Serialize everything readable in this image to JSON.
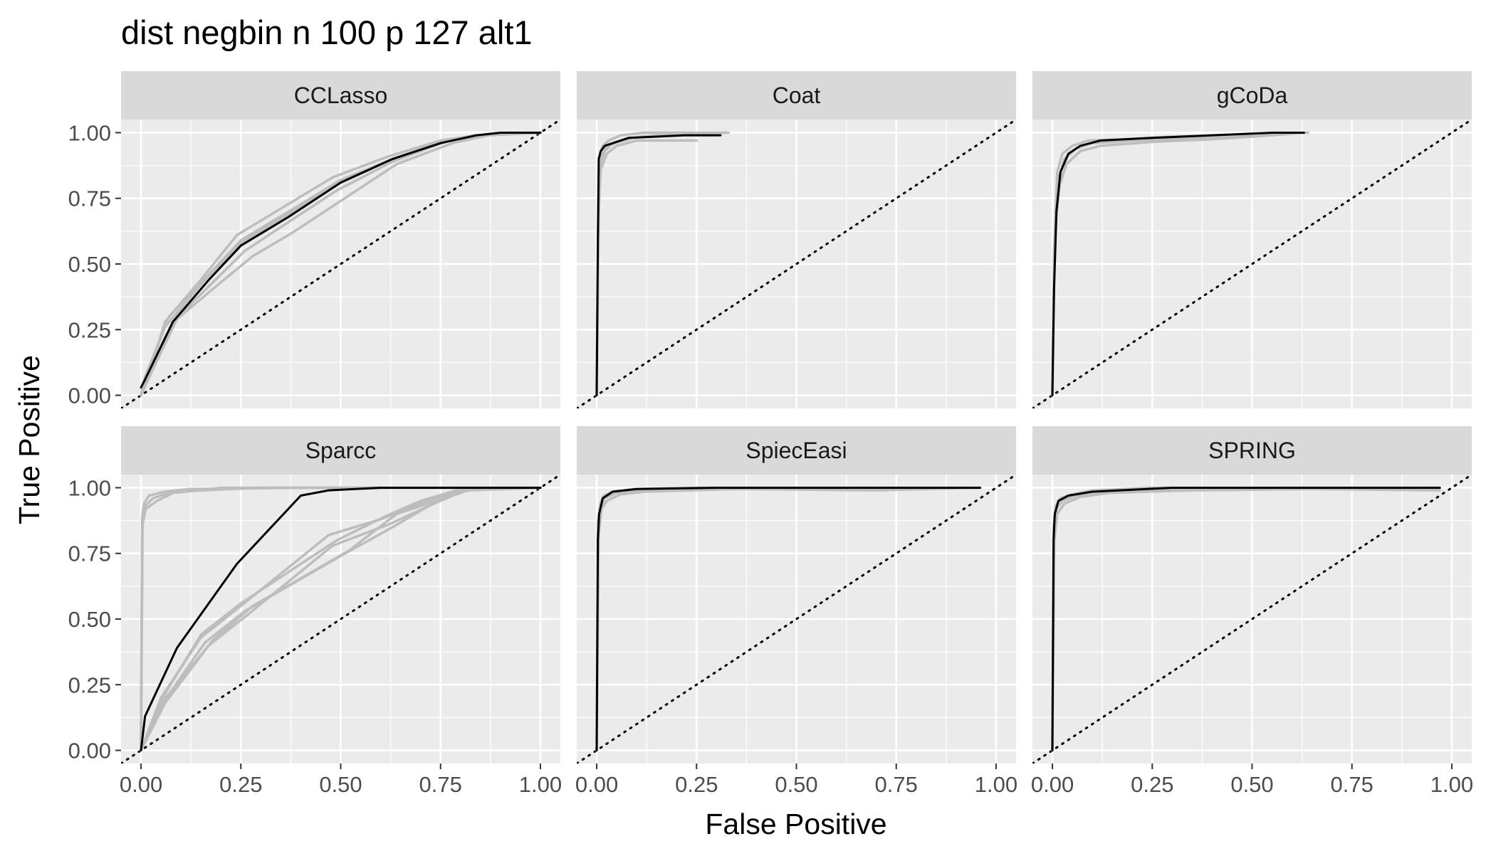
{
  "chart_data": {
    "type": "line",
    "title": "dist negbin n 100 p 127 alt1",
    "xlabel": "False Positive",
    "ylabel": "True Positive",
    "xlim": [
      -0.05,
      1.05
    ],
    "ylim": [
      -0.05,
      1.05
    ],
    "x_ticks": [
      "0.00",
      "0.25",
      "0.50",
      "0.75",
      "1.00"
    ],
    "y_ticks": [
      "0.00",
      "0.25",
      "0.50",
      "0.75",
      "1.00"
    ],
    "grid": true,
    "reference_line": {
      "style": "dotted",
      "x": [
        -0.05,
        1.05
      ],
      "y": [
        -0.05,
        1.05
      ]
    },
    "colors": {
      "mean_curve": "#000000",
      "replicate_curves": "#bdbdbd",
      "panel_background": "#ebebeb",
      "strip_background": "#d9d9d9"
    },
    "panels": [
      {
        "name": "CCLasso",
        "replicates": [
          {
            "x": [
              0,
              0.02,
              0.07,
              0.17,
              0.25,
              0.37,
              0.5,
              0.63,
              0.76,
              0.85,
              0.92,
              1.0
            ],
            "y": [
              0,
              0.1,
              0.3,
              0.46,
              0.59,
              0.7,
              0.82,
              0.9,
              0.97,
              0.99,
              1.0,
              1.0
            ]
          },
          {
            "x": [
              0,
              0.02,
              0.06,
              0.15,
              0.24,
              0.36,
              0.48,
              0.62,
              0.75,
              0.84,
              1.0
            ],
            "y": [
              0,
              0.08,
              0.28,
              0.44,
              0.61,
              0.72,
              0.83,
              0.91,
              0.97,
              0.99,
              1.0
            ]
          },
          {
            "x": [
              0,
              0.03,
              0.09,
              0.2,
              0.28,
              0.38,
              0.51,
              0.64,
              0.78,
              0.87,
              1.0
            ],
            "y": [
              0,
              0.1,
              0.29,
              0.43,
              0.53,
              0.62,
              0.75,
              0.88,
              0.96,
              0.99,
              1.0
            ]
          },
          {
            "x": [
              0,
              0.02,
              0.08,
              0.18,
              0.26,
              0.36,
              0.49,
              0.63,
              0.77,
              0.86,
              1.0
            ],
            "y": [
              0,
              0.09,
              0.28,
              0.43,
              0.55,
              0.65,
              0.78,
              0.89,
              0.97,
              0.99,
              1.0
            ]
          },
          {
            "x": [
              0,
              0.01,
              0.06,
              0.16,
              0.25,
              0.37,
              0.5,
              0.63,
              0.76,
              0.85,
              1.0
            ],
            "y": [
              0,
              0.07,
              0.26,
              0.44,
              0.58,
              0.69,
              0.81,
              0.9,
              0.97,
              0.99,
              1.0
            ]
          }
        ],
        "mean": {
          "x": [
            0,
            0.01,
            0.08,
            0.17,
            0.25,
            0.37,
            0.5,
            0.63,
            0.75,
            0.84,
            0.9,
            1.0
          ],
          "y": [
            0.03,
            0.06,
            0.28,
            0.44,
            0.57,
            0.68,
            0.81,
            0.9,
            0.96,
            0.99,
            1.0,
            1.0
          ]
        }
      },
      {
        "name": "Coat",
        "replicates": [
          {
            "x": [
              0,
              0.004,
              0.008,
              0.02,
              0.04,
              0.08,
              0.15,
              0.22,
              0.3
            ],
            "y": [
              0,
              0.6,
              0.88,
              0.93,
              0.96,
              0.98,
              0.99,
              0.99,
              0.99
            ]
          },
          {
            "x": [
              0,
              0.003,
              0.007,
              0.015,
              0.03,
              0.06,
              0.12,
              0.2,
              0.33
            ],
            "y": [
              0,
              0.55,
              0.9,
              0.95,
              0.97,
              0.99,
              1.0,
              1.0,
              1.0
            ]
          },
          {
            "x": [
              0,
              0.005,
              0.01,
              0.025,
              0.05,
              0.1,
              0.18,
              0.25
            ],
            "y": [
              0,
              0.7,
              0.86,
              0.92,
              0.95,
              0.97,
              0.97,
              0.97
            ]
          },
          {
            "x": [
              0,
              0.004,
              0.009,
              0.02,
              0.045,
              0.09,
              0.16,
              0.32
            ],
            "y": [
              0,
              0.65,
              0.89,
              0.94,
              0.96,
              0.98,
              0.99,
              1.0
            ]
          }
        ],
        "mean": {
          "x": [
            0,
            0.003,
            0.005,
            0.01,
            0.02,
            0.04,
            0.08,
            0.15,
            0.22,
            0.31
          ],
          "y": [
            0,
            0.6,
            0.9,
            0.93,
            0.95,
            0.96,
            0.98,
            0.985,
            0.99,
            0.99
          ]
        }
      },
      {
        "name": "gCoDa",
        "replicates": [
          {
            "x": [
              0,
              0.005,
              0.015,
              0.03,
              0.06,
              0.1,
              0.2,
              0.35,
              0.5,
              0.62
            ],
            "y": [
              0,
              0.6,
              0.82,
              0.9,
              0.94,
              0.96,
              0.97,
              0.98,
              0.99,
              1.0
            ]
          },
          {
            "x": [
              0,
              0.004,
              0.012,
              0.025,
              0.05,
              0.09,
              0.18,
              0.3,
              0.45,
              0.64
            ],
            "y": [
              0,
              0.55,
              0.85,
              0.92,
              0.95,
              0.97,
              0.975,
              0.985,
              0.99,
              1.0
            ]
          },
          {
            "x": [
              0,
              0.006,
              0.018,
              0.035,
              0.07,
              0.12,
              0.25,
              0.4,
              0.55,
              0.63
            ],
            "y": [
              0,
              0.62,
              0.8,
              0.88,
              0.93,
              0.95,
              0.965,
              0.975,
              0.99,
              1.0
            ]
          }
        ],
        "mean": {
          "x": [
            0,
            0.004,
            0.01,
            0.02,
            0.04,
            0.07,
            0.12,
            0.25,
            0.4,
            0.55,
            0.63
          ],
          "y": [
            0,
            0.4,
            0.7,
            0.85,
            0.92,
            0.95,
            0.97,
            0.98,
            0.99,
            1.0,
            1.0
          ]
        }
      },
      {
        "name": "Sparcc",
        "replicates": [
          {
            "x": [
              0,
              0.003,
              0.01,
              0.03,
              0.07,
              0.15,
              0.3,
              0.6,
              1.0
            ],
            "y": [
              0,
              0.88,
              0.93,
              0.96,
              0.98,
              0.99,
              1.0,
              1.0,
              1.0
            ]
          },
          {
            "x": [
              0,
              0.004,
              0.012,
              0.04,
              0.08,
              0.2,
              0.5,
              1.0
            ],
            "y": [
              0,
              0.86,
              0.92,
              0.95,
              0.98,
              1.0,
              1.0,
              1.0
            ]
          },
          {
            "x": [
              0,
              0.003,
              0.008,
              0.02,
              0.06,
              0.12,
              0.4,
              1.0
            ],
            "y": [
              0,
              0.89,
              0.94,
              0.97,
              0.985,
              0.995,
              1.0,
              1.0
            ]
          },
          {
            "x": [
              0,
              0.05,
              0.15,
              0.25,
              0.47,
              0.6,
              0.7,
              0.8,
              0.85,
              1.0
            ],
            "y": [
              0,
              0.2,
              0.43,
              0.55,
              0.82,
              0.88,
              0.94,
              0.99,
              1.0,
              1.0
            ]
          },
          {
            "x": [
              0,
              0.05,
              0.17,
              0.27,
              0.48,
              0.62,
              0.72,
              0.8,
              1.0
            ],
            "y": [
              0,
              0.18,
              0.4,
              0.52,
              0.78,
              0.86,
              0.93,
              0.99,
              1.0
            ]
          },
          {
            "x": [
              0,
              0.05,
              0.16,
              0.26,
              0.5,
              0.63,
              0.72,
              0.81,
              1.0
            ],
            "y": [
              0,
              0.17,
              0.41,
              0.53,
              0.74,
              0.85,
              0.93,
              0.99,
              1.0
            ]
          },
          {
            "x": [
              0,
              0.06,
              0.18,
              0.28,
              0.52,
              0.64,
              0.74,
              0.82,
              1.0
            ],
            "y": [
              0,
              0.18,
              0.42,
              0.55,
              0.76,
              0.9,
              0.95,
              0.99,
              1.0
            ]
          },
          {
            "x": [
              0,
              0.05,
              0.15,
              0.25,
              0.49,
              0.61,
              0.7,
              0.79,
              1.0
            ],
            "y": [
              0,
              0.19,
              0.44,
              0.56,
              0.8,
              0.89,
              0.95,
              0.99,
              1.0
            ]
          }
        ],
        "mean": {
          "x": [
            0,
            0.01,
            0.09,
            0.24,
            0.4,
            0.47,
            0.6,
            0.75,
            0.9,
            1.0
          ],
          "y": [
            0,
            0.13,
            0.39,
            0.71,
            0.97,
            0.99,
            1.0,
            1.0,
            1.0,
            1.0
          ]
        }
      },
      {
        "name": "SpiecEasi",
        "replicates": [
          {
            "x": [
              0,
              0.004,
              0.01,
              0.02,
              0.05,
              0.1,
              0.3,
              0.6,
              0.96
            ],
            "y": [
              0,
              0.85,
              0.93,
              0.96,
              0.98,
              0.99,
              1.0,
              1.0,
              1.0
            ]
          },
          {
            "x": [
              0,
              0.005,
              0.012,
              0.025,
              0.06,
              0.12,
              0.35,
              0.7,
              0.96
            ],
            "y": [
              0,
              0.82,
              0.92,
              0.95,
              0.975,
              0.985,
              0.995,
              0.99,
              1.0
            ]
          },
          {
            "x": [
              0,
              0.003,
              0.009,
              0.018,
              0.04,
              0.09,
              0.25,
              0.55,
              0.96
            ],
            "y": [
              0,
              0.87,
              0.94,
              0.97,
              0.985,
              0.995,
              1.0,
              1.0,
              1.0
            ]
          }
        ],
        "mean": {
          "x": [
            0,
            0.003,
            0.006,
            0.015,
            0.04,
            0.1,
            0.3,
            0.6,
            0.96
          ],
          "y": [
            0,
            0.8,
            0.9,
            0.96,
            0.985,
            0.995,
            1.0,
            1.0,
            1.0
          ]
        }
      },
      {
        "name": "SPRING",
        "replicates": [
          {
            "x": [
              0,
              0.004,
              0.01,
              0.025,
              0.06,
              0.12,
              0.3,
              0.6,
              0.97
            ],
            "y": [
              0,
              0.82,
              0.92,
              0.95,
              0.97,
              0.985,
              0.995,
              1.0,
              1.0
            ]
          },
          {
            "x": [
              0,
              0.005,
              0.012,
              0.03,
              0.07,
              0.14,
              0.35,
              0.65,
              0.97
            ],
            "y": [
              0,
              0.8,
              0.9,
              0.94,
              0.965,
              0.98,
              0.99,
              0.995,
              0.99
            ]
          },
          {
            "x": [
              0,
              0.003,
              0.008,
              0.02,
              0.05,
              0.1,
              0.25,
              0.55,
              0.97
            ],
            "y": [
              0,
              0.85,
              0.93,
              0.96,
              0.975,
              0.99,
              1.0,
              1.0,
              1.0
            ]
          }
        ],
        "mean": {
          "x": [
            0,
            0.003,
            0.006,
            0.015,
            0.04,
            0.1,
            0.3,
            0.6,
            0.97
          ],
          "y": [
            0,
            0.8,
            0.9,
            0.95,
            0.97,
            0.985,
            1.0,
            1.0,
            1.0
          ]
        }
      }
    ]
  }
}
